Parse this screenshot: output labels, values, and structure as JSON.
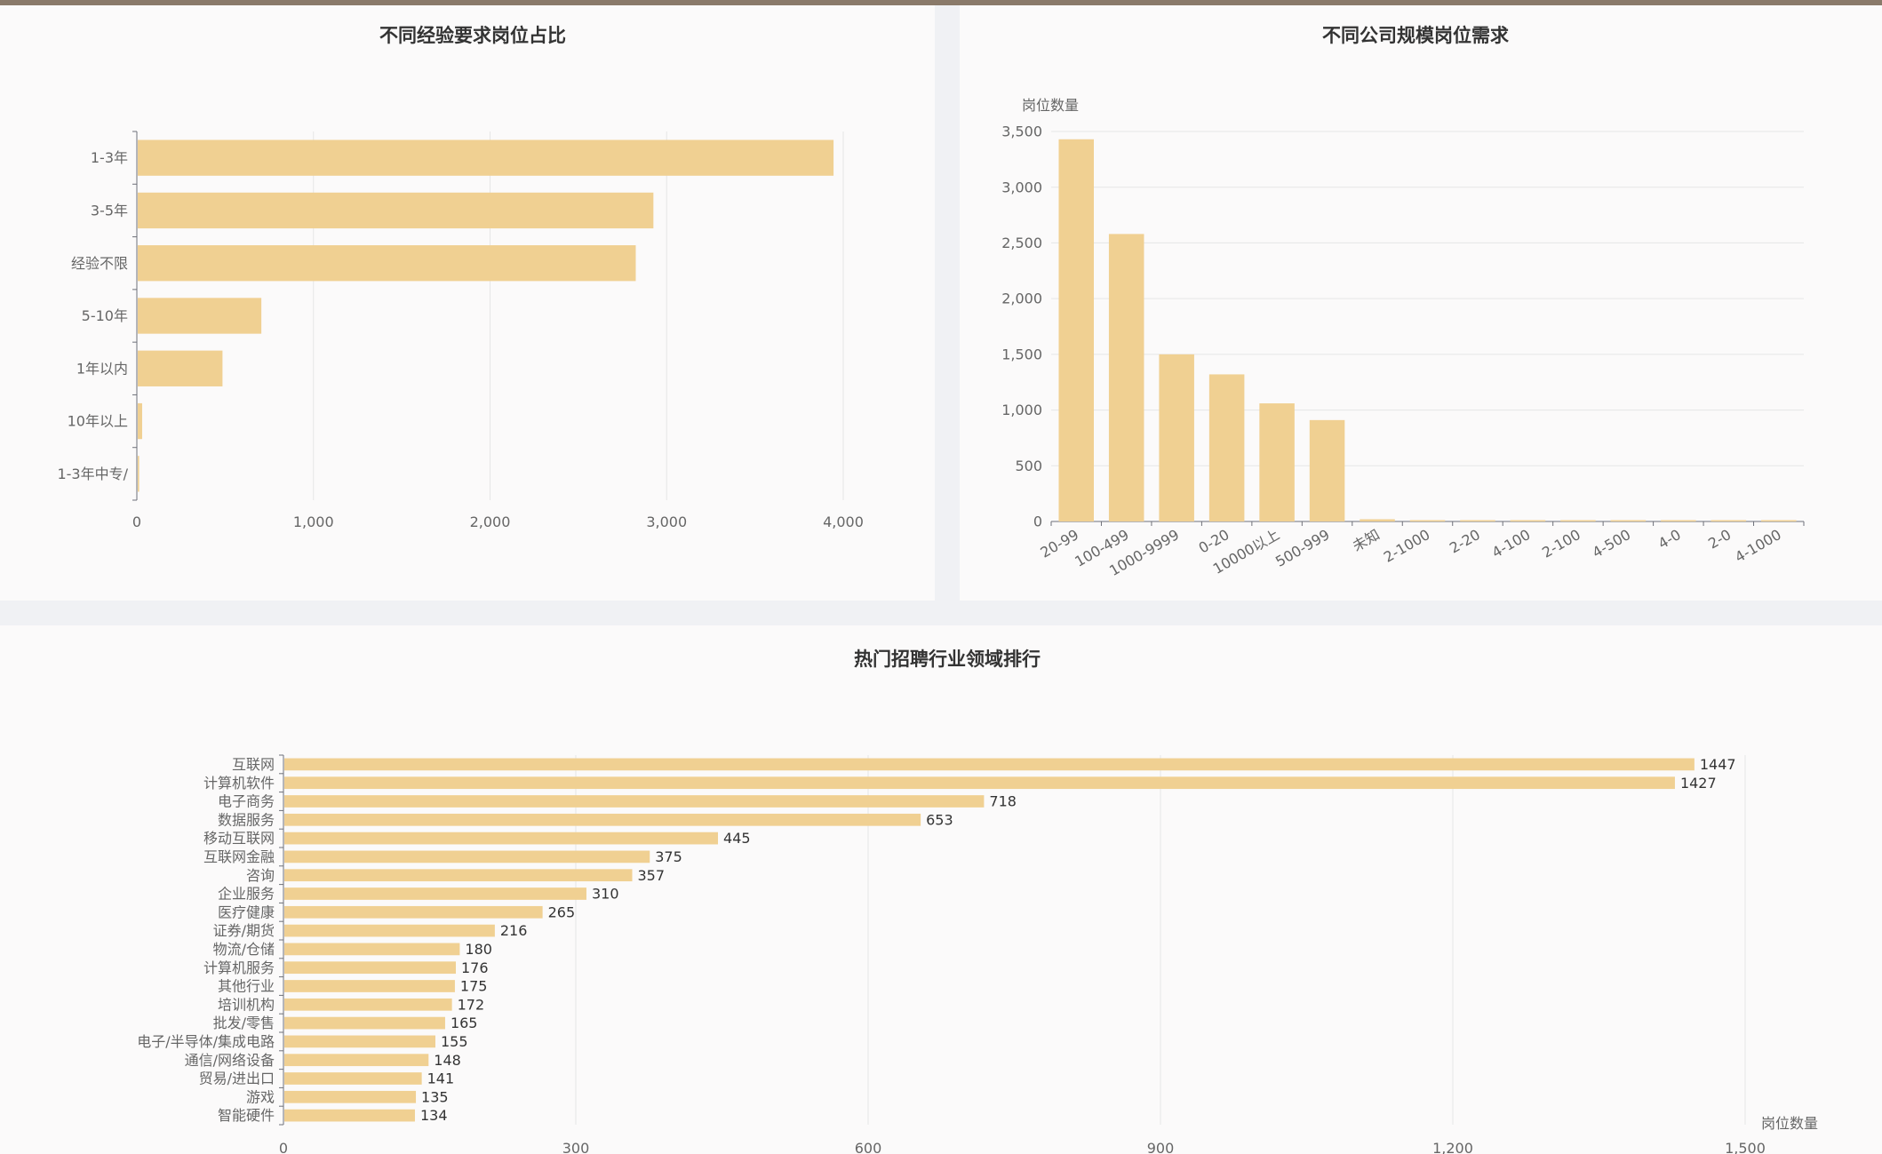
{
  "colors": {
    "bar": "#f0d092",
    "axis": "#6e7079",
    "grid": "#e6e6e6",
    "label": "#666666",
    "value": "#333333"
  },
  "chart_data": [
    {
      "id": "experience",
      "type": "bar",
      "orientation": "horizontal",
      "title": "不同经验要求岗位占比",
      "categories": [
        "1-3年",
        "3-5年",
        "经验不限",
        "5-10年",
        "1年以内",
        "10年以上",
        "1-3年中专/"
      ],
      "values": [
        3940,
        2920,
        2820,
        700,
        480,
        25,
        8
      ],
      "xlim": [
        0,
        4000
      ],
      "ticks": [
        0,
        1000,
        2000,
        3000,
        4000
      ],
      "tick_labels": [
        "0",
        "1,000",
        "2,000",
        "3,000",
        "4,000"
      ],
      "grid": true
    },
    {
      "id": "company-size",
      "type": "bar",
      "orientation": "vertical",
      "title": "不同公司规模岗位需求",
      "ylabel": "岗位数量",
      "categories": [
        "20-99",
        "100-499",
        "1000-9999",
        "0-20",
        "10000以上",
        "500-999",
        "未知",
        "2-1000",
        "2-20",
        "4-100",
        "2-100",
        "4-500",
        "4-0",
        "2-0",
        "4-1000"
      ],
      "values": [
        3430,
        2580,
        1500,
        1320,
        1060,
        910,
        20,
        10,
        8,
        6,
        5,
        4,
        3,
        2,
        2
      ],
      "ylim": [
        0,
        3500
      ],
      "ticks": [
        0,
        500,
        1000,
        1500,
        2000,
        2500,
        3000,
        3500
      ],
      "tick_labels": [
        "0",
        "500",
        "1,000",
        "1,500",
        "2,000",
        "2,500",
        "3,000",
        "3,500"
      ],
      "grid": true
    },
    {
      "id": "industry",
      "type": "bar",
      "orientation": "horizontal",
      "title": "热门招聘行业领域排行",
      "xlabel": "岗位数量",
      "categories": [
        "互联网",
        "计算机软件",
        "电子商务",
        "数据服务",
        "移动互联网",
        "互联网金融",
        "咨询",
        "企业服务",
        "医疗健康",
        "证券/期货",
        "物流/仓储",
        "计算机服务",
        "其他行业",
        "培训机构",
        "批发/零售",
        "电子/半导体/集成电路",
        "通信/网络设备",
        "贸易/进出口",
        "游戏",
        "智能硬件"
      ],
      "values": [
        1447,
        1427,
        718,
        653,
        445,
        375,
        357,
        310,
        265,
        216,
        180,
        176,
        175,
        172,
        165,
        155,
        148,
        141,
        135,
        134
      ],
      "value_labels": [
        "1447",
        "1427",
        "718",
        "653",
        "445",
        "375",
        "357",
        "310",
        "265",
        "216",
        "180",
        "176",
        "175",
        "172",
        "165",
        "155",
        "148",
        "141",
        "135",
        "134"
      ],
      "xlim": [
        0,
        1500
      ],
      "ticks": [
        0,
        300,
        600,
        900,
        1200,
        1500
      ],
      "tick_labels": [
        "0",
        "300",
        "600",
        "900",
        "1,200",
        "1,500"
      ],
      "grid": true
    }
  ]
}
